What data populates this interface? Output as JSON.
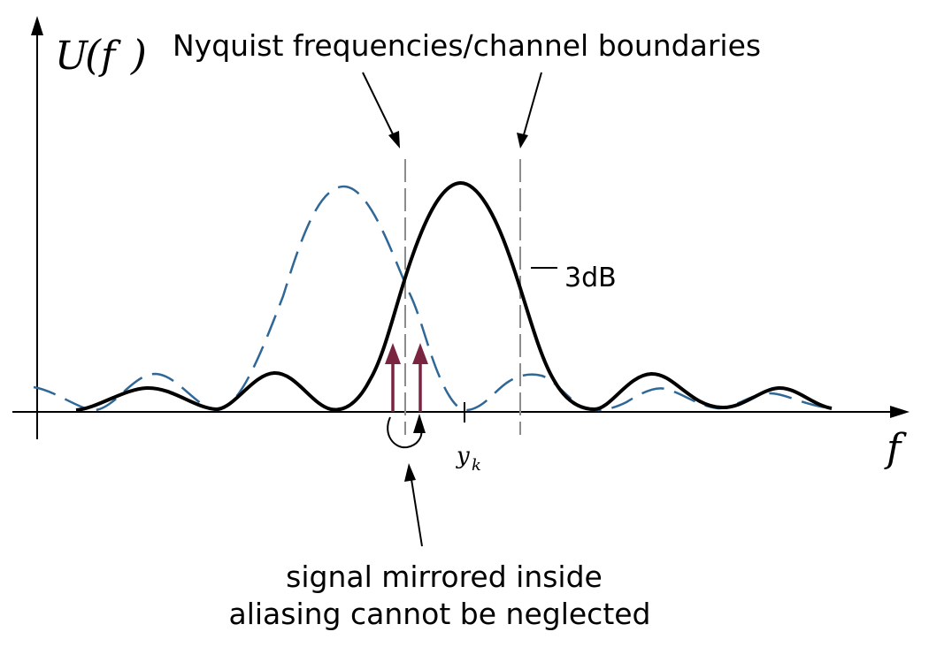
{
  "axes": {
    "y_label_main": "U",
    "y_label_open": "(",
    "y_label_var": "f",
    "y_label_close": ")",
    "x_label": "f",
    "tick_label_main": "y",
    "tick_label_sub": "k"
  },
  "annotations": {
    "nyquist": "Nyquist frequencies/channel boundaries",
    "three_db": "3dB",
    "bottom_line1": "signal mirrored inside",
    "bottom_line2": "aliasing cannot be neglected"
  },
  "colors": {
    "main_curve": "#000000",
    "neighbor_curve": "#2f6796",
    "boundary_lines": "#8c8c8c",
    "mirror_arrows": "#7a2540",
    "axis": "#000000"
  }
}
